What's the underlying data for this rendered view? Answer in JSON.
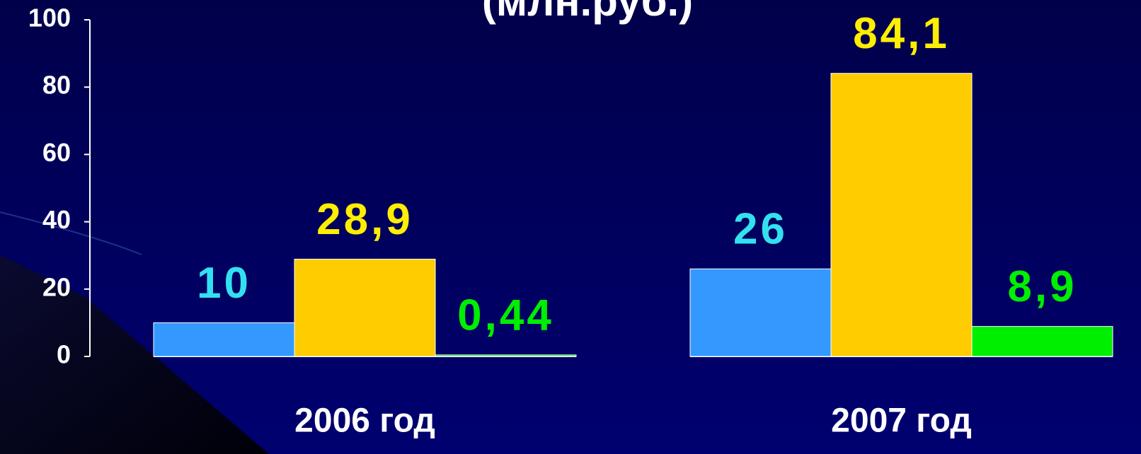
{
  "chart_data": {
    "type": "bar",
    "title": "(млн.руб.)",
    "categories": [
      "2006 год",
      "2007 год"
    ],
    "series": [
      {
        "color": "#3399ff",
        "label_color": "#33e0f0",
        "values": [
          10,
          26
        ]
      },
      {
        "color": "#ffcc00",
        "label_color": "#ffee00",
        "values": [
          28.9,
          84.1
        ],
        "value_labels": [
          "28,9",
          "84,1"
        ]
      },
      {
        "color": "#00ee00",
        "label_color": "#00ee00",
        "values": [
          0.44,
          8.9
        ],
        "value_labels": [
          "0,44",
          "8,9"
        ]
      }
    ],
    "ylim": [
      0,
      100
    ],
    "yticks": [
      0,
      20,
      40,
      60,
      80,
      100
    ]
  }
}
